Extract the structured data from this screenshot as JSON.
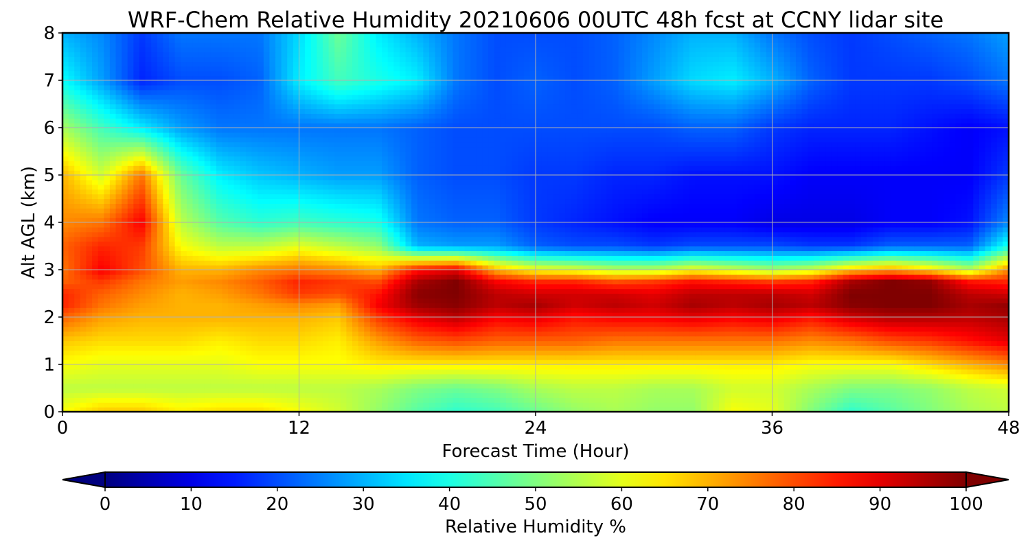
{
  "chart_data": {
    "type": "heatmap",
    "title": "WRF-Chem Relative Humidity 20210606 00UTC 48h fcst at CCNY lidar site",
    "xlabel": "Forecast Time (Hour)",
    "ylabel": "Alt AGL (km)",
    "xlim": [
      0,
      48
    ],
    "ylim": [
      0,
      8
    ],
    "xticks": [
      0,
      12,
      24,
      36,
      48
    ],
    "yticks": [
      0,
      1,
      2,
      3,
      4,
      5,
      6,
      7,
      8
    ],
    "grid": true,
    "colormap": "jet",
    "colorbar": {
      "label": "Relative Humidity %",
      "range": [
        0,
        100
      ],
      "ticks": [
        0,
        10,
        20,
        30,
        40,
        50,
        60,
        70,
        80,
        90,
        100
      ],
      "extend": "both",
      "orientation": "horizontal"
    },
    "x": [
      0,
      2,
      4,
      6,
      8,
      10,
      12,
      14,
      16,
      18,
      20,
      22,
      24,
      26,
      28,
      30,
      32,
      34,
      36,
      38,
      40,
      42,
      44,
      46,
      48
    ],
    "y": [
      0,
      0.5,
      1,
      1.5,
      2,
      2.25,
      2.5,
      2.75,
      3,
      3.5,
      4,
      5,
      6,
      7,
      8
    ],
    "z": [
      [
        62,
        68,
        68,
        64,
        66,
        66,
        62,
        58,
        52,
        46,
        42,
        44,
        48,
        52,
        54,
        52,
        52,
        62,
        60,
        50,
        42,
        46,
        50,
        54,
        56
      ],
      [
        56,
        56,
        56,
        56,
        56,
        56,
        56,
        56,
        54,
        50,
        48,
        50,
        54,
        56,
        56,
        54,
        54,
        58,
        58,
        54,
        50,
        50,
        52,
        56,
        58
      ],
      [
        62,
        60,
        60,
        60,
        60,
        62,
        62,
        62,
        64,
        64,
        64,
        64,
        64,
        64,
        64,
        64,
        64,
        64,
        64,
        62,
        62,
        62,
        66,
        70,
        74
      ],
      [
        68,
        66,
        66,
        66,
        64,
        66,
        66,
        64,
        72,
        78,
        80,
        78,
        78,
        78,
        76,
        76,
        76,
        76,
        76,
        74,
        76,
        80,
        82,
        86,
        90
      ],
      [
        78,
        72,
        70,
        70,
        70,
        70,
        70,
        68,
        82,
        90,
        94,
        88,
        90,
        86,
        88,
        88,
        90,
        88,
        90,
        86,
        92,
        95,
        95,
        94,
        96
      ],
      [
        84,
        76,
        72,
        70,
        70,
        72,
        74,
        72,
        88,
        97,
        99,
        94,
        96,
        92,
        94,
        92,
        96,
        94,
        96,
        94,
        99,
        100,
        100,
        96,
        98
      ],
      [
        84,
        78,
        74,
        70,
        72,
        76,
        82,
        80,
        86,
        99,
        100,
        94,
        92,
        92,
        92,
        90,
        94,
        94,
        94,
        92,
        100,
        100,
        100,
        94,
        92
      ],
      [
        78,
        82,
        76,
        72,
        74,
        78,
        84,
        82,
        80,
        96,
        100,
        88,
        84,
        84,
        80,
        82,
        86,
        84,
        82,
        84,
        96,
        100,
        98,
        86,
        84
      ],
      [
        76,
        88,
        80,
        70,
        70,
        74,
        76,
        74,
        70,
        86,
        90,
        70,
        62,
        60,
        56,
        56,
        62,
        58,
        54,
        58,
        68,
        72,
        66,
        56,
        74
      ],
      [
        78,
        84,
        82,
        62,
        56,
        56,
        60,
        56,
        52,
        30,
        28,
        28,
        22,
        20,
        20,
        18,
        20,
        20,
        20,
        18,
        18,
        22,
        22,
        22,
        40
      ],
      [
        74,
        76,
        88,
        56,
        46,
        42,
        44,
        42,
        40,
        24,
        22,
        22,
        18,
        16,
        14,
        12,
        12,
        12,
        10,
        10,
        10,
        12,
        12,
        14,
        26
      ],
      [
        70,
        58,
        76,
        48,
        36,
        32,
        30,
        28,
        28,
        22,
        20,
        20,
        18,
        18,
        16,
        16,
        14,
        14,
        14,
        12,
        12,
        12,
        12,
        12,
        18
      ],
      [
        54,
        44,
        36,
        28,
        24,
        24,
        24,
        24,
        24,
        22,
        20,
        20,
        20,
        20,
        20,
        20,
        22,
        22,
        18,
        16,
        16,
        16,
        14,
        12,
        14
      ],
      [
        38,
        28,
        16,
        20,
        20,
        22,
        36,
        44,
        40,
        36,
        24,
        20,
        22,
        20,
        22,
        28,
        34,
        36,
        30,
        22,
        18,
        18,
        18,
        20,
        24
      ],
      [
        30,
        26,
        18,
        24,
        24,
        24,
        34,
        48,
        36,
        30,
        24,
        20,
        20,
        20,
        22,
        26,
        30,
        30,
        24,
        20,
        18,
        20,
        22,
        24,
        28
      ]
    ]
  }
}
